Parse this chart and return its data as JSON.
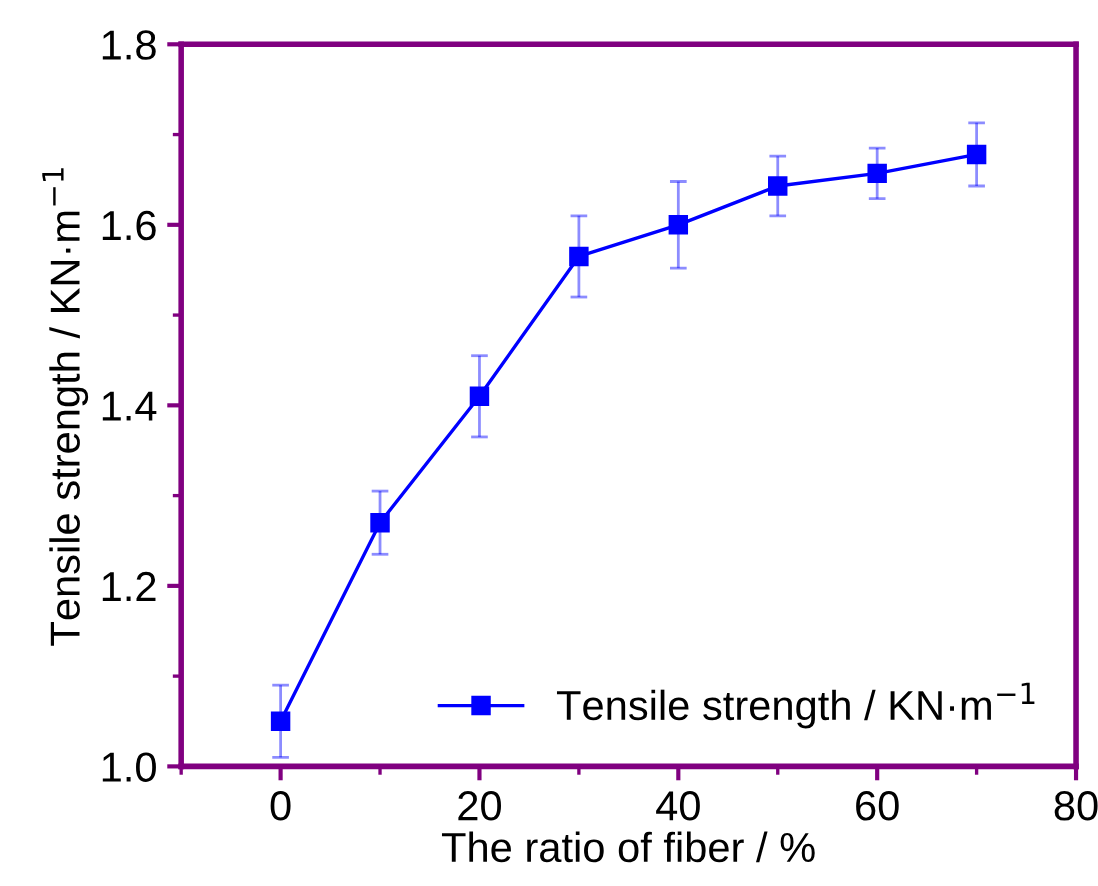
{
  "chart_data": {
    "type": "line",
    "xlabel": "The ratio of fiber / %",
    "ylabel": "Tensile strength / KN·m$^{−1}$",
    "x": [
      0,
      10,
      20,
      30,
      40,
      50,
      60,
      70
    ],
    "series": [
      {
        "name": "Tensile strength / KN·m$^{−1}$",
        "color": "#0000ff",
        "values": [
          1.05,
          1.27,
          1.41,
          1.565,
          1.6,
          1.643,
          1.657,
          1.678
        ],
        "errors": [
          0.04,
          0.035,
          0.045,
          0.045,
          0.048,
          0.033,
          0.028,
          0.035
        ]
      }
    ],
    "xlim": [
      -10,
      80
    ],
    "xticks": [
      0,
      20,
      40,
      60,
      80
    ],
    "ylim": [
      1.0,
      1.8
    ],
    "yticks": [
      {
        "value": 1.0,
        "label": "1.0"
      },
      1.2,
      1.4,
      1.6,
      1.8
    ],
    "marker": "square",
    "line_style": "solid",
    "legend": "bottom right",
    "grid": false
  }
}
